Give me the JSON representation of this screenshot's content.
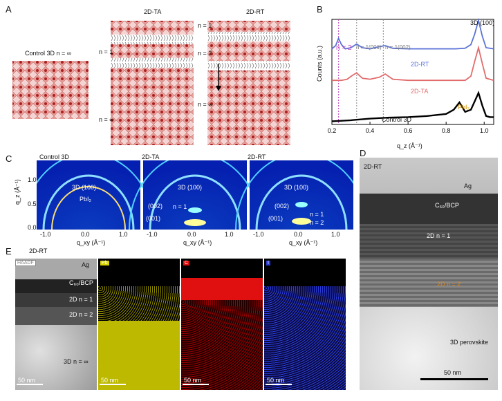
{
  "panel_a": {
    "label": "A",
    "control_title": "Control 3D n = ∞",
    "ta_title": "2D-TA",
    "rt_title": "2D-RT",
    "ta_n1": "n = 1",
    "ta_ninf": "n = ∞",
    "rt_n1": "n = 1",
    "rt_n2": "n = 2",
    "rt_ninf": "n = ∞"
  },
  "panel_b": {
    "label": "B",
    "chart_data": {
      "type": "line",
      "xlabel": "q_z (Å⁻¹)",
      "ylabel": "Counts (a.u.)",
      "xlim": [
        0.2,
        1.05
      ],
      "xticks": [
        "0.2",
        "0.4",
        "0.6",
        "0.8",
        "1.0"
      ],
      "series": [
        {
          "name": "2D-RT",
          "color": "#5b73d6",
          "x": [
            0.2,
            0.22,
            0.235,
            0.25,
            0.27,
            0.3,
            0.33,
            0.36,
            0.4,
            0.45,
            0.48,
            0.52,
            0.6,
            0.7,
            0.8,
            0.85,
            0.9,
            0.93,
            0.95,
            0.97,
            0.99,
            1.01,
            1.05
          ],
          "y": [
            0.72,
            0.75,
            0.82,
            0.76,
            0.72,
            0.73,
            0.765,
            0.73,
            0.72,
            0.74,
            0.75,
            0.725,
            0.72,
            0.72,
            0.72,
            0.72,
            0.725,
            0.76,
            0.86,
            0.99,
            0.84,
            0.73,
            0.72
          ]
        },
        {
          "name": "2D-TA",
          "color": "#e26b6b",
          "x": [
            0.2,
            0.25,
            0.28,
            0.31,
            0.33,
            0.36,
            0.4,
            0.45,
            0.48,
            0.52,
            0.6,
            0.7,
            0.8,
            0.9,
            0.93,
            0.95,
            0.97,
            0.99,
            1.01,
            1.05
          ],
          "y": [
            0.42,
            0.42,
            0.43,
            0.47,
            0.49,
            0.44,
            0.43,
            0.45,
            0.48,
            0.43,
            0.42,
            0.42,
            0.42,
            0.42,
            0.46,
            0.6,
            0.73,
            0.58,
            0.44,
            0.42
          ]
        },
        {
          "name": "Control 3D",
          "color": "#000000",
          "x": [
            0.2,
            0.3,
            0.4,
            0.5,
            0.6,
            0.7,
            0.75,
            0.8,
            0.84,
            0.87,
            0.9,
            0.93,
            0.95,
            0.97,
            0.99,
            1.01,
            1.03,
            1.05
          ],
          "y": [
            0.03,
            0.04,
            0.055,
            0.065,
            0.07,
            0.08,
            0.09,
            0.1,
            0.14,
            0.21,
            0.12,
            0.14,
            0.22,
            0.3,
            0.18,
            0.08,
            0.07,
            0.07
          ]
        }
      ],
      "vlines": [
        {
          "x": 0.235,
          "color": "#c040c0",
          "label": "n = 2"
        },
        {
          "x": 0.33,
          "color": "#888888",
          "label": "n = 1(001)"
        },
        {
          "x": 0.47,
          "color": "#888888",
          "label": "n = 1(002)"
        }
      ],
      "annotations": [
        "3D (100)",
        "PbI₂"
      ]
    },
    "curve_labels": {
      "rt": "2D-RT",
      "ta": "2D-TA",
      "control": "Control 3D"
    },
    "peak_100": "3D (100)",
    "pbi2": "PbI₂",
    "vl_n2": "n = 2",
    "vl_001": "n = 1(001)",
    "vl_002": "n = 1(002)",
    "xlabel": "q_z (Å⁻¹)",
    "ylabel": "Counts (a.u.)",
    "xticks": [
      "0.2",
      "0.4",
      "0.6",
      "0.8",
      "1.0"
    ]
  },
  "panel_c": {
    "label": "C",
    "titles": [
      "Control 3D",
      "2D-TA",
      "2D-RT"
    ],
    "ring_label": "3D (100)",
    "pbi2": "PbI₂",
    "l_n1": "n = 1",
    "l_n2": "n = 2",
    "l_002": "(002)",
    "l_001": "(001)",
    "ylabel": "q_z (Å⁻¹)",
    "xlabel": "q_xy (Å⁻¹)",
    "yticks": [
      "1.0",
      "0.5",
      "0.0"
    ],
    "xticks": [
      "-1.0",
      "0.0",
      "1.0"
    ]
  },
  "panel_d": {
    "label": "D",
    "title": "2D-RT",
    "ag": "Ag",
    "c60": "C₆₀/BCP",
    "n1": "2D n = 1",
    "n2": "2D n = 2",
    "bulk": "3D perovskite",
    "scale": "50 nm"
  },
  "panel_e": {
    "label": "E",
    "title": "2D-RT",
    "haadf": "HAADF",
    "ag": "Ag",
    "c60": "C₆₀/BCP",
    "n1": "2D n = 1",
    "n2": "2D n = 2",
    "ninf": "3D n = ∞",
    "scale": "50 nm",
    "maps": [
      {
        "tag": "Pb",
        "color": "#d9d400",
        "scale": "50 nm"
      },
      {
        "tag": "C",
        "color": "#e01010",
        "scale": "50 nm"
      },
      {
        "tag": "I",
        "color": "#2a3dd8",
        "scale": "50 nm"
      }
    ]
  }
}
